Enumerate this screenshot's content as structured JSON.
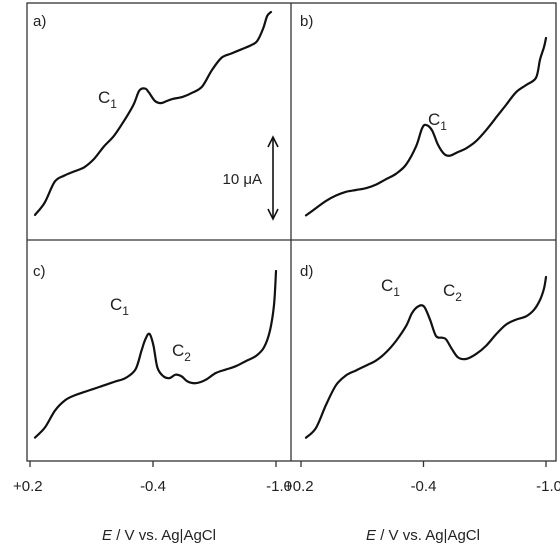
{
  "chart_data": [
    {
      "panel": "a)",
      "type": "line",
      "xlim": [
        0.2,
        -1.0
      ],
      "peaks": [
        {
          "label": "C",
          "sub": "1",
          "x": -0.38,
          "y": 0.63
        }
      ],
      "series": [
        {
          "x": [
            0.2,
            0.15,
            0.1,
            0.05,
            0.0,
            -0.05,
            -0.1,
            -0.15,
            -0.2,
            -0.25,
            -0.3,
            -0.33,
            -0.36,
            -0.38,
            -0.41,
            -0.44,
            -0.47,
            -0.5,
            -0.55,
            -0.6,
            -0.65,
            -0.7,
            -0.75,
            -0.8,
            -0.85,
            -0.9,
            -0.93,
            -0.96,
            -0.98,
            -1.0
          ],
          "y": [
            0.02,
            0.08,
            0.18,
            0.21,
            0.23,
            0.25,
            0.29,
            0.35,
            0.4,
            0.47,
            0.55,
            0.62,
            0.63,
            0.61,
            0.57,
            0.56,
            0.57,
            0.58,
            0.59,
            0.61,
            0.64,
            0.72,
            0.78,
            0.8,
            0.82,
            0.84,
            0.86,
            0.92,
            0.98,
            1.0
          ]
        }
      ]
    },
    {
      "panel": "b)",
      "type": "line",
      "xlim": [
        0.2,
        -1.0
      ],
      "peaks": [
        {
          "label": "C",
          "sub": "1",
          "x": -0.4,
          "y": 0.52
        }
      ],
      "series": [
        {
          "x": [
            0.2,
            0.15,
            0.1,
            0.05,
            0.0,
            -0.05,
            -0.1,
            -0.15,
            -0.2,
            -0.25,
            -0.3,
            -0.35,
            -0.38,
            -0.4,
            -0.43,
            -0.46,
            -0.49,
            -0.52,
            -0.56,
            -0.6,
            -0.65,
            -0.7,
            -0.75,
            -0.8,
            -0.85,
            -0.9,
            -0.95,
            -0.97,
            -0.99,
            -1.0
          ],
          "y": [
            0.02,
            0.06,
            0.1,
            0.13,
            0.15,
            0.16,
            0.17,
            0.19,
            0.22,
            0.25,
            0.3,
            0.4,
            0.5,
            0.52,
            0.49,
            0.41,
            0.36,
            0.35,
            0.37,
            0.39,
            0.43,
            0.49,
            0.56,
            0.63,
            0.7,
            0.74,
            0.78,
            0.88,
            0.95,
            1.0
          ]
        }
      ]
    },
    {
      "panel": "c)",
      "type": "line",
      "xlim": [
        0.2,
        -1.0
      ],
      "peaks": [
        {
          "label": "C",
          "sub": "1",
          "x": -0.37,
          "y": 0.63
        },
        {
          "label": "C",
          "sub": "2",
          "x": -0.5,
          "y": 0.39
        }
      ],
      "series": [
        {
          "x": [
            0.2,
            0.15,
            0.1,
            0.05,
            0.0,
            -0.05,
            -0.1,
            -0.15,
            -0.2,
            -0.25,
            -0.3,
            -0.33,
            -0.35,
            -0.37,
            -0.39,
            -0.41,
            -0.44,
            -0.47,
            -0.5,
            -0.53,
            -0.56,
            -0.6,
            -0.65,
            -0.7,
            -0.75,
            -0.8,
            -0.85,
            -0.9,
            -0.94,
            -0.97,
            -0.99,
            -1.0
          ],
          "y": [
            0.02,
            0.08,
            0.18,
            0.24,
            0.27,
            0.29,
            0.31,
            0.33,
            0.35,
            0.37,
            0.42,
            0.53,
            0.6,
            0.63,
            0.56,
            0.43,
            0.38,
            0.37,
            0.39,
            0.38,
            0.35,
            0.34,
            0.36,
            0.4,
            0.42,
            0.44,
            0.47,
            0.5,
            0.55,
            0.65,
            0.8,
            1.0
          ]
        }
      ]
    },
    {
      "panel": "d)",
      "type": "line",
      "xlim": [
        0.2,
        -1.0
      ],
      "peaks": [
        {
          "label": "C",
          "sub": "1",
          "x": -0.39,
          "y": 0.82
        },
        {
          "label": "C",
          "sub": "2",
          "x": -0.5,
          "y": 0.62
        }
      ],
      "series": [
        {
          "x": [
            0.2,
            0.15,
            0.1,
            0.05,
            0.0,
            -0.05,
            -0.1,
            -0.15,
            -0.2,
            -0.25,
            -0.3,
            -0.33,
            -0.36,
            -0.39,
            -0.42,
            -0.45,
            -0.48,
            -0.5,
            -0.53,
            -0.56,
            -0.6,
            -0.65,
            -0.7,
            -0.75,
            -0.8,
            -0.85,
            -0.9,
            -0.94,
            -0.97,
            -0.99,
            -1.0
          ],
          "y": [
            0.02,
            0.08,
            0.22,
            0.34,
            0.4,
            0.43,
            0.46,
            0.49,
            0.54,
            0.61,
            0.7,
            0.78,
            0.82,
            0.82,
            0.74,
            0.64,
            0.63,
            0.62,
            0.56,
            0.51,
            0.5,
            0.53,
            0.58,
            0.65,
            0.71,
            0.74,
            0.76,
            0.8,
            0.86,
            0.93,
            1.0
          ]
        }
      ]
    }
  ],
  "axis": {
    "ticks": [
      "+0.2",
      "-0.4",
      "-1.0"
    ],
    "xlabel_italic": "E",
    "xlabel_rest": " / V vs. Ag|AgCl"
  },
  "scale_bar": {
    "label": "10 μA"
  }
}
